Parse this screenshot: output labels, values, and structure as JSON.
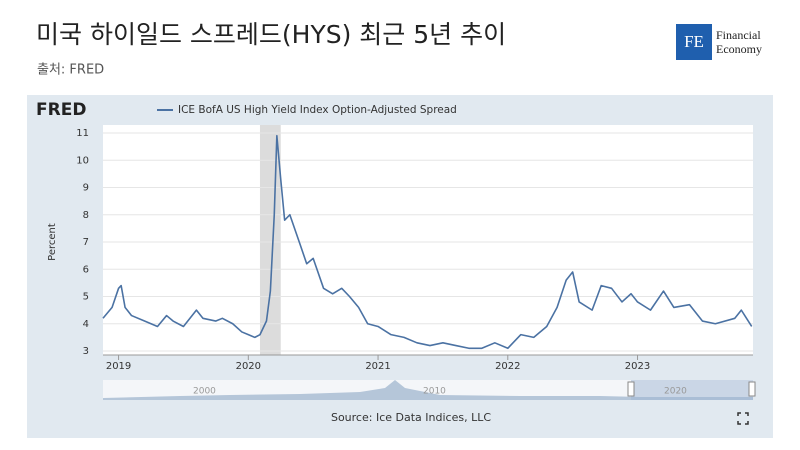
{
  "chart_data": {
    "type": "line",
    "title": "미국 하이일드 스프레드(HYS) 최근 5년 추이",
    "subtitle": "출처: FRED",
    "logo": "FRED",
    "ylabel": "Percent",
    "source": "Source: Ice Data Indices, LLC",
    "navigator_labels": [
      "2000",
      "2010",
      "2020"
    ],
    "grid": true,
    "shaded_region": [
      2020.09,
      2020.25
    ],
    "xlim": [
      2018.88,
      2023.89
    ],
    "xticks": [
      2019,
      2020,
      2021,
      2022,
      2023
    ],
    "ylim": [
      3,
      11
    ],
    "yticks": [
      3,
      4,
      5,
      6,
      7,
      8,
      9,
      10,
      11
    ],
    "x": [
      2018.88,
      2018.95,
      2019.0,
      2019.02,
      2019.05,
      2019.1,
      2019.2,
      2019.3,
      2019.37,
      2019.42,
      2019.5,
      2019.6,
      2019.65,
      2019.75,
      2019.8,
      2019.88,
      2019.95,
      2020.0,
      2020.05,
      2020.09,
      2020.14,
      2020.17,
      2020.2,
      2020.22,
      2020.25,
      2020.28,
      2020.32,
      2020.4,
      2020.45,
      2020.5,
      2020.58,
      2020.65,
      2020.72,
      2020.78,
      2020.85,
      2020.92,
      2021.0,
      2021.1,
      2021.2,
      2021.3,
      2021.4,
      2021.5,
      2021.6,
      2021.7,
      2021.8,
      2021.9,
      2022.0,
      2022.1,
      2022.2,
      2022.3,
      2022.38,
      2022.45,
      2022.5,
      2022.55,
      2022.65,
      2022.72,
      2022.8,
      2022.88,
      2022.95,
      2023.0,
      2023.1,
      2023.2,
      2023.28,
      2023.4,
      2023.5,
      2023.6,
      2023.75,
      2023.8,
      2023.84,
      2023.88
    ],
    "series": [
      {
        "name": "ICE BofA US High Yield Index Option-Adjusted Spread",
        "color": "#4b72a3",
        "values": [
          4.2,
          4.6,
          5.3,
          5.4,
          4.6,
          4.3,
          4.1,
          3.9,
          4.3,
          4.1,
          3.9,
          4.5,
          4.2,
          4.1,
          4.2,
          4.0,
          3.7,
          3.6,
          3.5,
          3.6,
          4.1,
          5.2,
          8.0,
          10.9,
          9.3,
          7.8,
          8.0,
          6.9,
          6.2,
          6.4,
          5.3,
          5.1,
          5.3,
          5.0,
          4.6,
          4.0,
          3.9,
          3.6,
          3.5,
          3.3,
          3.2,
          3.3,
          3.2,
          3.1,
          3.1,
          3.3,
          3.1,
          3.6,
          3.5,
          3.9,
          4.6,
          5.6,
          5.9,
          4.8,
          4.5,
          5.4,
          5.3,
          4.8,
          5.1,
          4.8,
          4.5,
          5.2,
          4.6,
          4.7,
          4.1,
          4.0,
          4.2,
          4.5,
          4.2,
          3.9
        ]
      }
    ]
  },
  "brand": {
    "mark": "FE",
    "lines": [
      "Financial",
      "Economy"
    ]
  }
}
